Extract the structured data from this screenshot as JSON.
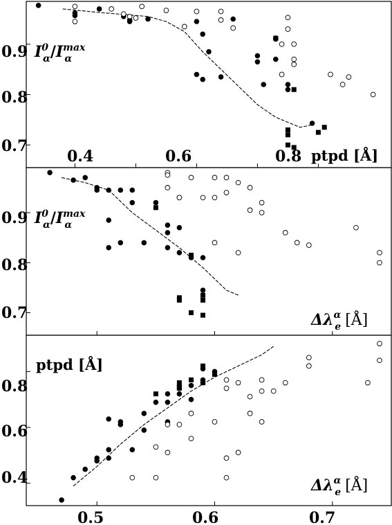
{
  "chart_data": [
    {
      "type": "scatter",
      "panel": "top",
      "ylabel": "I_α^0 / I_α^max",
      "ylabel_parts": {
        "base1": "I",
        "sup1": "0",
        "sub1": "α",
        "sep": "/",
        "base2": "I",
        "sup2": "max",
        "sub2": "α"
      },
      "xlabel": "ptpd [Å]",
      "x_ticks": [
        "0.4",
        "0.6",
        "0.8"
      ],
      "y_ticks": [
        "0.9",
        "0.8",
        "0.7"
      ],
      "xlim": [
        0.32,
        0.92
      ],
      "ylim": [
        0.655,
        0.985
      ],
      "series": [
        {
          "marker": "filled-circle",
          "points": [
            [
              0.34,
              0.977
            ],
            [
              0.4,
              0.957
            ],
            [
              0.4,
              0.962
            ],
            [
              0.44,
              0.97
            ],
            [
              0.48,
              0.955
            ],
            [
              0.49,
              0.948
            ],
            [
              0.49,
              0.945
            ],
            [
              0.52,
              0.95
            ],
            [
              0.6,
              0.945
            ],
            [
              0.61,
              0.92
            ],
            [
              0.62,
              0.885
            ],
            [
              0.6,
              0.84
            ],
            [
              0.61,
              0.83
            ],
            [
              0.64,
              0.835
            ],
            [
              0.66,
              0.95
            ],
            [
              0.7,
              0.877
            ],
            [
              0.7,
              0.865
            ],
            [
              0.71,
              0.82
            ],
            [
              0.73,
              0.87
            ],
            [
              0.73,
              0.91
            ],
            [
              0.75,
              0.82
            ],
            [
              0.75,
              0.81
            ],
            [
              0.79,
              0.743
            ]
          ]
        },
        {
          "marker": "open-circle",
          "points": [
            [
              0.4,
              0.975
            ],
            [
              0.4,
              0.945
            ],
            [
              0.46,
              0.97
            ],
            [
              0.48,
              0.96
            ],
            [
              0.49,
              0.955
            ],
            [
              0.5,
              0.952
            ],
            [
              0.51,
              0.975
            ],
            [
              0.55,
              0.967
            ],
            [
              0.58,
              0.935
            ],
            [
              0.6,
              0.965
            ],
            [
              0.64,
              0.965
            ],
            [
              0.64,
              0.948
            ],
            [
              0.66,
              0.932
            ],
            [
              0.73,
              0.912
            ],
            [
              0.74,
              0.9
            ],
            [
              0.75,
              0.953
            ],
            [
              0.75,
              0.93
            ],
            [
              0.76,
              0.87
            ],
            [
              0.76,
              0.86
            ],
            [
              0.74,
              0.84
            ],
            [
              0.76,
              0.9
            ],
            [
              0.82,
              0.84
            ],
            [
              0.84,
              0.82
            ],
            [
              0.85,
              0.835
            ],
            [
              0.89,
              0.8
            ]
          ]
        },
        {
          "marker": "filled-square",
          "points": [
            [
              0.73,
              0.912
            ],
            [
              0.75,
              0.73
            ],
            [
              0.75,
              0.72
            ],
            [
              0.76,
              0.81
            ],
            [
              0.75,
              0.7
            ],
            [
              0.76,
              0.695
            ],
            [
              0.8,
              0.725
            ],
            [
              0.81,
              0.735
            ]
          ]
        }
      ],
      "fit_line": [
        [
          0.38,
          0.97
        ],
        [
          0.44,
          0.963
        ],
        [
          0.49,
          0.958
        ],
        [
          0.52,
          0.955
        ],
        [
          0.55,
          0.945
        ],
        [
          0.58,
          0.925
        ],
        [
          0.61,
          0.885
        ],
        [
          0.64,
          0.85
        ],
        [
          0.67,
          0.815
        ],
        [
          0.7,
          0.78
        ],
        [
          0.73,
          0.755
        ],
        [
          0.77,
          0.735
        ],
        [
          0.79,
          0.74
        ]
      ]
    },
    {
      "type": "scatter",
      "panel": "middle",
      "ylabel": "I_α^0 / I_α^max",
      "ylabel_parts": {
        "base1": "I",
        "sup1": "0",
        "sub1": "α",
        "sep": "/",
        "base2": "I",
        "sup2": "max",
        "sub2": "α"
      },
      "xlabel": "Δλ_e^α [Å]",
      "xlabel_parts": {
        "delta": "Δλ",
        "sup": "α",
        "sub": "e",
        "unit": "[Å]"
      },
      "y_ticks": [
        "0.9",
        "0.8",
        "0.7"
      ],
      "xlim": [
        0.44,
        0.75
      ],
      "ylim": [
        0.655,
        0.99
      ],
      "series": [
        {
          "marker": "filled-circle",
          "points": [
            [
              0.46,
              0.98
            ],
            [
              0.48,
              0.965
            ],
            [
              0.49,
              0.97
            ],
            [
              0.5,
              0.95
            ],
            [
              0.5,
              0.945
            ],
            [
              0.51,
              0.945
            ],
            [
              0.52,
              0.945
            ],
            [
              0.51,
              0.83
            ],
            [
              0.51,
              0.885
            ],
            [
              0.52,
              0.84
            ],
            [
              0.53,
              0.945
            ],
            [
              0.53,
              0.92
            ],
            [
              0.54,
              0.84
            ],
            [
              0.55,
              0.92
            ],
            [
              0.56,
              0.875
            ],
            [
              0.56,
              0.86
            ],
            [
              0.56,
              0.83
            ],
            [
              0.57,
              0.87
            ],
            [
              0.57,
              0.82
            ],
            [
              0.58,
              0.81
            ],
            [
              0.59,
              0.745
            ],
            [
              0.59,
              0.81
            ]
          ]
        },
        {
          "marker": "open-circle",
          "points": [
            [
              0.56,
              0.98
            ],
            [
              0.56,
              0.975
            ],
            [
              0.56,
              0.95
            ],
            [
              0.57,
              0.93
            ],
            [
              0.57,
              0.93
            ],
            [
              0.58,
              0.97
            ],
            [
              0.59,
              0.93
            ],
            [
              0.6,
              0.97
            ],
            [
              0.6,
              0.93
            ],
            [
              0.61,
              0.94
            ],
            [
              0.61,
              0.97
            ],
            [
              0.62,
              0.96
            ],
            [
              0.63,
              0.95
            ],
            [
              0.63,
              0.905
            ],
            [
              0.64,
              0.92
            ],
            [
              0.64,
              0.9
            ],
            [
              0.6,
              0.84
            ],
            [
              0.62,
              0.82
            ],
            [
              0.66,
              0.86
            ],
            [
              0.67,
              0.84
            ],
            [
              0.68,
              0.835
            ],
            [
              0.72,
              0.87
            ],
            [
              0.74,
              0.82
            ],
            [
              0.74,
              0.8
            ]
          ]
        },
        {
          "marker": "filled-square",
          "points": [
            [
              0.55,
              0.91
            ],
            [
              0.57,
              0.73
            ],
            [
              0.57,
              0.725
            ],
            [
              0.58,
              0.815
            ],
            [
              0.58,
              0.7
            ],
            [
              0.59,
              0.695
            ],
            [
              0.59,
              0.735
            ],
            [
              0.59,
              0.725
            ]
          ]
        }
      ],
      "fit_line": [
        [
          0.47,
          0.97
        ],
        [
          0.49,
          0.96
        ],
        [
          0.51,
          0.945
        ],
        [
          0.53,
          0.9
        ],
        [
          0.55,
          0.865
        ],
        [
          0.57,
          0.83
        ],
        [
          0.59,
          0.79
        ],
        [
          0.61,
          0.745
        ],
        [
          0.62,
          0.735
        ]
      ]
    },
    {
      "type": "scatter",
      "panel": "bottom",
      "ylabel": "ptpd [Å]",
      "xlabel": "Δλ_e^α [Å]",
      "xlabel_parts": {
        "delta": "Δλ",
        "sup": "α",
        "sub": "e",
        "unit": "[Å]"
      },
      "x_ticks": [
        "0.5",
        "0.6",
        "0.7"
      ],
      "y_ticks": [
        "0.8",
        "0.6",
        "0.4"
      ],
      "xlim": [
        0.44,
        0.75
      ],
      "ylim": [
        0.32,
        0.93
      ],
      "series": [
        {
          "marker": "filled-circle",
          "points": [
            [
              0.47,
              0.34
            ],
            [
              0.48,
              0.42
            ],
            [
              0.49,
              0.45
            ],
            [
              0.5,
              0.49
            ],
            [
              0.5,
              0.48
            ],
            [
              0.51,
              0.49
            ],
            [
              0.51,
              0.52
            ],
            [
              0.51,
              0.63
            ],
            [
              0.52,
              0.62
            ],
            [
              0.52,
              0.61
            ],
            [
              0.53,
              0.52
            ],
            [
              0.54,
              0.59
            ],
            [
              0.54,
              0.65
            ],
            [
              0.55,
              0.69
            ],
            [
              0.56,
              0.69
            ],
            [
              0.56,
              0.72
            ],
            [
              0.56,
              0.62
            ],
            [
              0.57,
              0.74
            ],
            [
              0.57,
              0.75
            ],
            [
              0.57,
              0.72
            ],
            [
              0.58,
              0.75
            ],
            [
              0.58,
              0.7
            ],
            [
              0.59,
              0.76
            ],
            [
              0.59,
              0.77
            ],
            [
              0.59,
              0.81
            ],
            [
              0.6,
              0.8
            ]
          ]
        },
        {
          "marker": "open-circle",
          "points": [
            [
              0.53,
              0.42
            ],
            [
              0.55,
              0.42
            ],
            [
              0.55,
              0.53
            ],
            [
              0.56,
              0.51
            ],
            [
              0.56,
              0.61
            ],
            [
              0.57,
              0.61
            ],
            [
              0.58,
              0.56
            ],
            [
              0.58,
              0.65
            ],
            [
              0.6,
              0.62
            ],
            [
              0.61,
              0.42
            ],
            [
              0.61,
              0.49
            ],
            [
              0.62,
              0.51
            ],
            [
              0.61,
              0.74
            ],
            [
              0.61,
              0.77
            ],
            [
              0.62,
              0.76
            ],
            [
              0.63,
              0.65
            ],
            [
              0.63,
              0.71
            ],
            [
              0.64,
              0.62
            ],
            [
              0.64,
              0.73
            ],
            [
              0.64,
              0.77
            ],
            [
              0.65,
              0.73
            ],
            [
              0.66,
              0.76
            ],
            [
              0.68,
              0.82
            ],
            [
              0.68,
              0.85
            ],
            [
              0.73,
              0.76
            ],
            [
              0.74,
              0.9
            ],
            [
              0.74,
              0.84
            ]
          ]
        },
        {
          "marker": "filled-square",
          "points": [
            [
              0.55,
              0.72
            ],
            [
              0.57,
              0.76
            ],
            [
              0.57,
              0.74
            ],
            [
              0.58,
              0.77
            ],
            [
              0.59,
              0.76
            ],
            [
              0.59,
              0.82
            ],
            [
              0.6,
              0.79
            ]
          ]
        }
      ],
      "fit_line": [
        [
          0.48,
          0.39
        ],
        [
          0.5,
          0.46
        ],
        [
          0.52,
          0.54
        ],
        [
          0.54,
          0.61
        ],
        [
          0.56,
          0.67
        ],
        [
          0.58,
          0.73
        ],
        [
          0.6,
          0.78
        ],
        [
          0.62,
          0.82
        ],
        [
          0.64,
          0.86
        ],
        [
          0.65,
          0.89
        ]
      ]
    }
  ]
}
